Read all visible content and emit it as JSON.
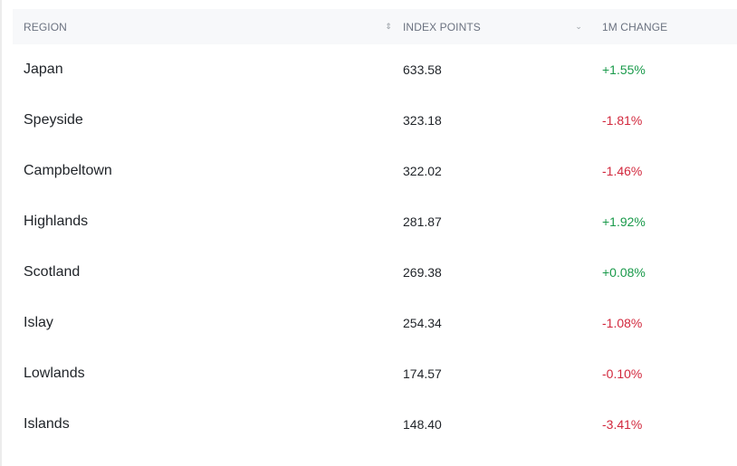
{
  "table": {
    "columns": {
      "region": "REGION",
      "index_points": "INDEX POINTS",
      "change": "1M CHANGE"
    },
    "sort_icons": {
      "region": "⌃⌄ sort-both",
      "index_points": "chevron-down"
    },
    "rows": [
      {
        "region": "Japan",
        "index_points": "633.58",
        "change": "+1.55%",
        "trend": "up"
      },
      {
        "region": "Speyside",
        "index_points": "323.18",
        "change": "-1.81%",
        "trend": "down"
      },
      {
        "region": "Campbeltown",
        "index_points": "322.02",
        "change": "-1.46%",
        "trend": "down"
      },
      {
        "region": "Highlands",
        "index_points": "281.87",
        "change": "+1.92%",
        "trend": "up"
      },
      {
        "region": "Scotland",
        "index_points": "269.38",
        "change": "+0.08%",
        "trend": "up"
      },
      {
        "region": "Islay",
        "index_points": "254.34",
        "change": "-1.08%",
        "trend": "down"
      },
      {
        "region": "Lowlands",
        "index_points": "174.57",
        "change": "-0.10%",
        "trend": "down"
      },
      {
        "region": "Islands",
        "index_points": "148.40",
        "change": "-3.41%",
        "trend": "down"
      }
    ]
  },
  "colors": {
    "positive": "#1a9a4b",
    "negative": "#d2283d",
    "header_bg": "#f7f8fa"
  }
}
